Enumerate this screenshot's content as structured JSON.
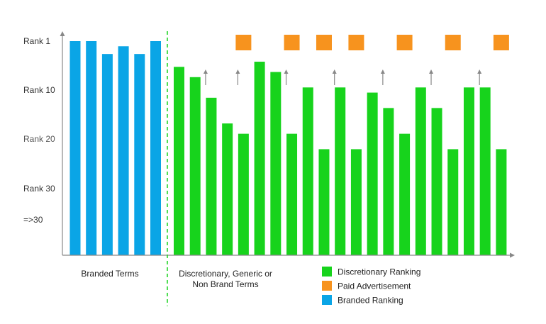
{
  "chart_data": {
    "type": "bar",
    "title": "",
    "y_axis": {
      "tick_labels": [
        "Rank 1",
        "Rank 10",
        "Rank 20",
        "Rank 30",
        "=>30"
      ],
      "tick_values": [
        1,
        10,
        20,
        30,
        36
      ],
      "range": [
        1,
        42
      ],
      "direction": "inverted"
    },
    "groups": [
      {
        "label": "Branded Terms",
        "series_key": "branded"
      },
      {
        "label_lines": [
          "Discretionary, Generic or",
          "Non Brand Terms"
        ],
        "series_key": "discretionary"
      }
    ],
    "series": [
      {
        "key": "branded",
        "name": "Branded Ranking",
        "color": "#0aa5e6",
        "values": [
          1,
          1,
          3.5,
          2,
          3.5,
          1
        ]
      },
      {
        "key": "discretionary",
        "name": "Discretionary Ranking",
        "color": "#17d31c",
        "values": [
          6,
          8,
          12,
          17,
          19,
          5,
          7,
          19,
          10,
          22,
          10,
          22,
          11,
          14,
          19,
          10,
          14,
          22,
          10,
          10,
          22
        ],
        "arrows_above_bars": [
          3,
          5,
          8,
          11,
          14,
          17,
          20
        ]
      },
      {
        "key": "paid",
        "name": "Paid Advertisement",
        "color": "#f7931e",
        "shown_above_bars": [
          5,
          8,
          10,
          12,
          15,
          18,
          21
        ]
      }
    ],
    "legend": {
      "placement": "bottom-right",
      "items": [
        "Discretionary Ranking",
        "Paid Advertisement",
        "Branded Ranking"
      ]
    },
    "divider": {
      "style": "dashed",
      "color": "#17d31c",
      "between_groups": true
    },
    "grid": false
  },
  "colors": {
    "axis": "#888888",
    "arrow": "#888888"
  }
}
